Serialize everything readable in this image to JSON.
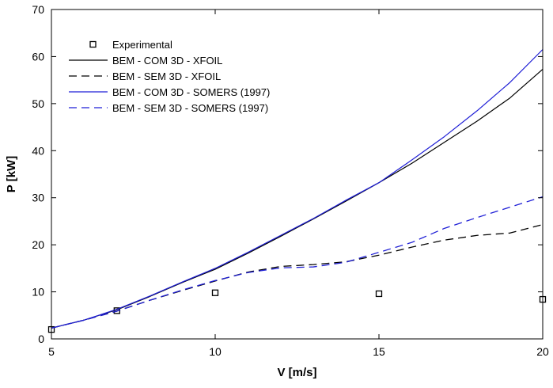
{
  "chart_data": {
    "type": "line",
    "xlabel": "V [m/s]",
    "ylabel": "P [kW]",
    "xlim": [
      5,
      20
    ],
    "ylim": [
      0,
      70
    ],
    "xticks": [
      5,
      10,
      15,
      20
    ],
    "yticks": [
      0,
      10,
      20,
      30,
      40,
      50,
      60,
      70
    ],
    "grid": false,
    "legend_position": "top-left",
    "series": [
      {
        "name": "Experimental",
        "style": "markers-square",
        "color": "#000000",
        "x": [
          5,
          7,
          10,
          15,
          20
        ],
        "y": [
          2.0,
          6.0,
          9.8,
          9.6,
          8.4
        ]
      },
      {
        "name": "BEM - COM 3D - XFOIL",
        "style": "solid",
        "color": "#000000",
        "x": [
          5,
          6,
          7,
          8,
          9,
          10,
          11,
          12,
          13,
          14,
          15,
          16,
          17,
          18,
          19,
          20
        ],
        "y": [
          2.3,
          4.0,
          6.2,
          9.0,
          12.0,
          14.8,
          18.2,
          21.8,
          25.5,
          29.3,
          33.2,
          37.3,
          41.8,
          46.3,
          51.2,
          57.3
        ]
      },
      {
        "name": "BEM - SEM 3D - XFOIL",
        "style": "dashed",
        "color": "#000000",
        "x": [
          5,
          6,
          7,
          8,
          9,
          10,
          11,
          12,
          13,
          14,
          15,
          16,
          17,
          18,
          19,
          20
        ],
        "y": [
          2.3,
          4.0,
          5.9,
          8.2,
          10.3,
          12.3,
          14.2,
          15.4,
          15.8,
          16.4,
          17.8,
          19.5,
          21.0,
          22.0,
          22.5,
          24.3
        ]
      },
      {
        "name": "BEM - COM 3D - SOMERS (1997)",
        "style": "solid",
        "color": "#1f1fd6",
        "x": [
          5,
          6,
          7,
          8,
          9,
          10,
          11,
          12,
          13,
          14,
          15,
          16,
          17,
          18,
          19,
          20
        ],
        "y": [
          2.3,
          4.0,
          6.3,
          9.1,
          12.1,
          15.0,
          18.4,
          22.0,
          25.6,
          29.5,
          33.2,
          38.0,
          43.0,
          48.5,
          54.5,
          61.5
        ]
      },
      {
        "name": "BEM - SEM 3D - SOMERS (1997)",
        "style": "dashed",
        "color": "#1f1fd6",
        "x": [
          5,
          6,
          7,
          8,
          9,
          10,
          11,
          12,
          13,
          14,
          15,
          16,
          17,
          18,
          19,
          20
        ],
        "y": [
          2.3,
          4.0,
          5.9,
          8.2,
          10.4,
          12.4,
          14.1,
          15.1,
          15.3,
          16.3,
          18.4,
          20.5,
          23.5,
          25.8,
          28.0,
          30.2
        ]
      }
    ]
  }
}
